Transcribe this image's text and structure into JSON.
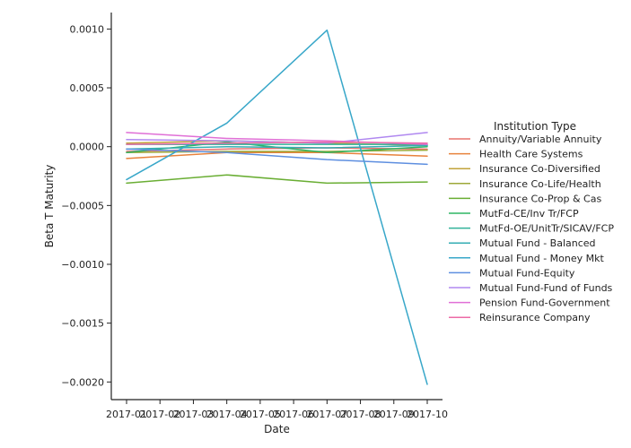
{
  "chart_data": {
    "type": "line",
    "xlabel": "Date",
    "ylabel": "Beta T Maturity",
    "x": [
      "2017-01",
      "2017-02",
      "2017-03",
      "2017-04",
      "2017-05",
      "2017-06",
      "2017-07",
      "2017-08",
      "2017-09",
      "2017-10"
    ],
    "ylim": [
      -0.00215,
      0.00114
    ],
    "yticks": [
      0.001,
      0.0005,
      0.0,
      -0.0005,
      -0.001,
      -0.0015,
      -0.002
    ],
    "ytick_labels": [
      "0.0010",
      "0.0005",
      "0.0000",
      "−0.0005",
      "−0.0010",
      "−0.0015",
      "−0.0020"
    ],
    "grid": false,
    "legend": {
      "title": "Institution Type",
      "placement": "right"
    },
    "series": [
      {
        "name": "Annuity/Variable Annuity",
        "color": "#e8736f",
        "x": [
          "2017-01",
          "2017-04",
          "2017-07",
          "2017-10"
        ],
        "values": [
          -4e-05,
          -2e-05,
          -1e-05,
          -2e-05
        ]
      },
      {
        "name": "Health Care Systems",
        "color": "#e8823c",
        "x": [
          "2017-01",
          "2017-04",
          "2017-07",
          "2017-10"
        ],
        "values": [
          -0.0001,
          -5e-05,
          -5e-05,
          -8e-05
        ]
      },
      {
        "name": "Insurance Co-Diversified",
        "color": "#c2a33a",
        "x": [
          "2017-01",
          "2017-04",
          "2017-07",
          "2017-10"
        ],
        "values": [
          3e-05,
          5e-05,
          3e-05,
          1e-05
        ]
      },
      {
        "name": "Insurance Co-Life/Health",
        "color": "#9ea838",
        "x": [
          "2017-01",
          "2017-04",
          "2017-07",
          "2017-10"
        ],
        "values": [
          -5e-05,
          -4e-05,
          -4e-05,
          -3e-05
        ]
      },
      {
        "name": "Insurance Co-Prop & Cas",
        "color": "#6aae34",
        "x": [
          "2017-01",
          "2017-04",
          "2017-07",
          "2017-10"
        ],
        "values": [
          -0.00031,
          -0.00024,
          -0.00031,
          -0.0003
        ]
      },
      {
        "name": "MutFd-CE/Inv Tr/FCP",
        "color": "#2fb563",
        "x": [
          "2017-01",
          "2017-04",
          "2017-07",
          "2017-10"
        ],
        "values": [
          -5e-05,
          4e-05,
          -5e-05,
          0.0
        ]
      },
      {
        "name": "MutFd-OE/UnitTr/SICAV/FCP",
        "color": "#32b29a",
        "x": [
          "2017-01",
          "2017-04",
          "2017-07",
          "2017-10"
        ],
        "values": [
          2e-05,
          2e-05,
          2e-05,
          2e-05
        ]
      },
      {
        "name": "Mutual Fund - Balanced",
        "color": "#33adb3",
        "x": [
          "2017-01",
          "2017-04",
          "2017-07",
          "2017-10"
        ],
        "values": [
          -2e-05,
          0.0,
          -1e-05,
          1e-05
        ]
      },
      {
        "name": "Mutual Fund - Money Mkt",
        "color": "#38a7c9",
        "x": [
          "2017-01",
          "2017-04",
          "2017-07",
          "2017-10"
        ],
        "values": [
          -0.00028,
          0.0002,
          0.00099,
          -0.00202
        ]
      },
      {
        "name": "Mutual Fund-Equity",
        "color": "#5e8fe0",
        "x": [
          "2017-01",
          "2017-04",
          "2017-07",
          "2017-10"
        ],
        "values": [
          -2e-05,
          -5e-05,
          -0.00011,
          -0.00015
        ]
      },
      {
        "name": "Mutual Fund-Fund of Funds",
        "color": "#b088f0",
        "x": [
          "2017-01",
          "2017-04",
          "2017-07",
          "2017-10"
        ],
        "values": [
          6e-05,
          5e-05,
          3e-05,
          0.00012
        ]
      },
      {
        "name": "Pension Fund-Government",
        "color": "#e06fd6",
        "x": [
          "2017-01",
          "2017-04",
          "2017-07",
          "2017-10"
        ],
        "values": [
          0.00012,
          7e-05,
          5e-05,
          2e-05
        ]
      },
      {
        "name": "Reinsurance Company",
        "color": "#ec6aa6",
        "x": [
          "2017-01",
          "2017-04",
          "2017-07",
          "2017-10"
        ],
        "values": [
          2e-05,
          3e-05,
          4e-05,
          3e-05
        ]
      }
    ]
  }
}
